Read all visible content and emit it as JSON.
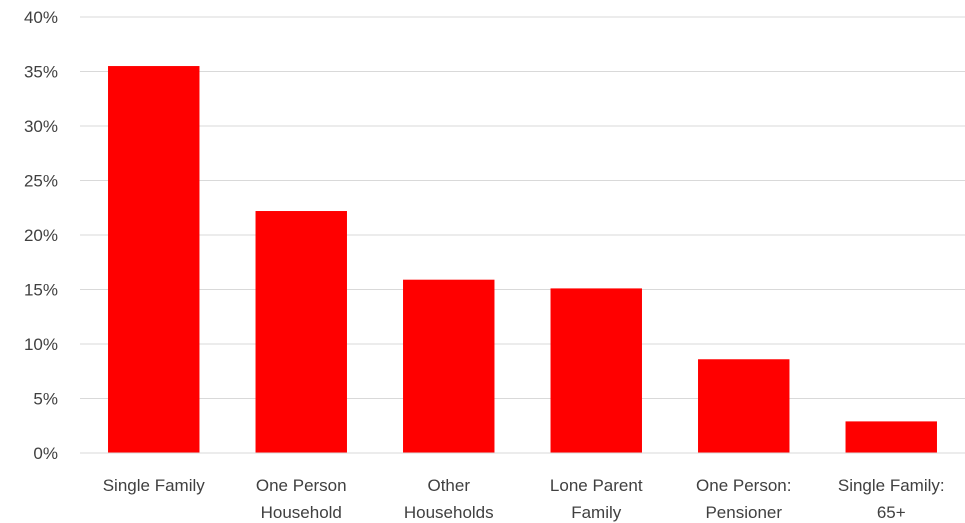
{
  "chart_data": {
    "type": "bar",
    "title": "",
    "xlabel": "",
    "ylabel": "",
    "categories": [
      [
        "Single Family"
      ],
      [
        "One Person",
        "Household"
      ],
      [
        "Other",
        "Households"
      ],
      [
        "Lone Parent",
        "Family"
      ],
      [
        "One Person:",
        "Pensioner"
      ],
      [
        "Single Family:",
        "65+"
      ]
    ],
    "values": [
      35.5,
      22.2,
      15.9,
      15.1,
      8.6,
      2.9
    ],
    "value_unit": "%",
    "ylim": [
      0,
      40
    ],
    "yticks": [
      0,
      5,
      10,
      15,
      20,
      25,
      30,
      35,
      40
    ],
    "ytick_labels": [
      "0%",
      "5%",
      "10%",
      "15%",
      "20%",
      "25%",
      "30%",
      "35%",
      "40%"
    ],
    "grid": true,
    "legend": "none",
    "colors": {
      "bar": "#ff0000",
      "grid": "#d9d9d9",
      "text": "#404040"
    }
  }
}
